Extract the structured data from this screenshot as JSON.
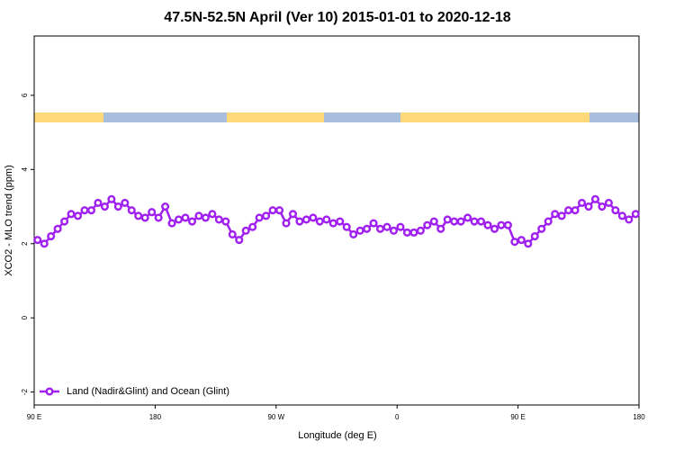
{
  "chart_data": {
    "type": "line",
    "title": "47.5N-52.5N April (Ver 10)   2015-01-01 to 2020-12-18",
    "xlabel": "Longitude (deg E)",
    "ylabel": "XCO2 - MLO trend (ppm)",
    "xlim": [
      90,
      540
    ],
    "ylim": [
      -2.35,
      7.6
    ],
    "xticks": [
      {
        "value": 90,
        "label": "90 E"
      },
      180,
      {
        "value": 270,
        "label": "90 W"
      },
      {
        "value": 360,
        "label": "0"
      },
      {
        "value": 450,
        "label": "90 E"
      },
      {
        "value": 540,
        "label": "180"
      }
    ],
    "yticks": [
      -2,
      0,
      2,
      4,
      6
    ],
    "legend": "bottom-left",
    "x": [
      92.5,
      97.5,
      102.5,
      107.5,
      112.5,
      117.5,
      122.5,
      127.5,
      132.5,
      137.5,
      142.5,
      147.5,
      152.5,
      157.5,
      162.5,
      167.5,
      172.5,
      177.5,
      182.5,
      187.5,
      192.5,
      197.5,
      202.5,
      207.5,
      212.5,
      217.5,
      222.5,
      227.5,
      232.5,
      237.5,
      242.5,
      247.5,
      252.5,
      257.5,
      262.5,
      267.5,
      272.5,
      277.5,
      282.5,
      287.5,
      292.5,
      297.5,
      302.5,
      307.5,
      312.5,
      317.5,
      322.5,
      327.5,
      332.5,
      337.5,
      342.5,
      347.5,
      352.5,
      357.5,
      362.5,
      367.5,
      372.5,
      377.5,
      382.5,
      387.5,
      392.5,
      397.5,
      402.5,
      407.5,
      412.5,
      417.5,
      422.5,
      427.5,
      432.5,
      437.5,
      442.5,
      447.5,
      452.5,
      457.5,
      462.5,
      467.5,
      472.5,
      477.5,
      482.5,
      487.5,
      492.5,
      497.5,
      502.5,
      507.5,
      512.5,
      517.5,
      522.5,
      527.5,
      532.5,
      537.5
    ],
    "series": [
      {
        "name": "Land (Nadir&Glint) and Ocean (Glint)",
        "color": "#a020f0",
        "values": [
          2.1,
          2.0,
          2.2,
          2.4,
          2.6,
          2.8,
          2.75,
          2.9,
          2.9,
          3.1,
          3.0,
          3.2,
          3.0,
          3.1,
          2.9,
          2.75,
          2.7,
          2.85,
          2.7,
          3.0,
          2.55,
          2.65,
          2.7,
          2.6,
          2.75,
          2.7,
          2.8,
          2.65,
          2.6,
          2.25,
          2.1,
          2.35,
          2.45,
          2.7,
          2.75,
          2.9,
          2.9,
          2.55,
          2.8,
          2.6,
          2.65,
          2.7,
          2.6,
          2.65,
          2.55,
          2.6,
          2.45,
          2.25,
          2.35,
          2.4,
          2.55,
          2.4,
          2.45,
          2.35,
          2.45,
          2.3,
          2.3,
          2.35,
          2.5,
          2.6,
          2.4,
          2.65,
          2.6,
          2.6,
          2.7,
          2.6,
          2.6,
          2.5,
          2.4,
          2.5,
          2.5,
          2.05,
          2.1,
          2.0,
          2.2,
          2.4,
          2.6,
          2.8,
          2.75,
          2.9,
          2.9,
          3.1,
          3.0,
          3.2,
          3.0,
          3.1,
          2.9,
          2.75,
          2.65,
          2.8
        ]
      }
    ]
  }
}
